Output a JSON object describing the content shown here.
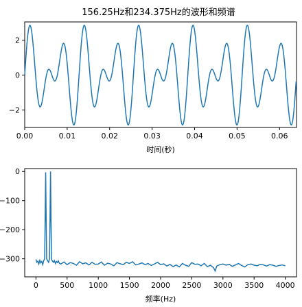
{
  "chart_data": [
    {
      "type": "line",
      "title": "156.25Hz和234.375Hz的波形和频谱",
      "xlabel": "时间(秒)",
      "ylabel": "",
      "xlim": [
        0,
        0.064
      ],
      "ylim": [
        -3,
        3.05
      ],
      "xticks": [
        "0.00",
        "0.01",
        "0.02",
        "0.03",
        "0.04",
        "0.05",
        "0.06"
      ],
      "yticks": [
        "2",
        "0",
        "−2"
      ],
      "signal": {
        "components": [
          {
            "freq_hz": 156.25,
            "amplitude": 1.5
          },
          {
            "freq_hz": 234.375,
            "amplitude": 1.5
          }
        ],
        "t_start": 0,
        "t_end": 0.0639
      },
      "color": "#1f77b4",
      "grid": false
    },
    {
      "type": "line",
      "title": "",
      "xlabel": "频率(Hz)",
      "ylabel": "",
      "xlim": [
        -180,
        4180
      ],
      "ylim": [
        -362,
        10
      ],
      "xticks": [
        "0",
        "500",
        "1000",
        "1500",
        "2000",
        "2500",
        "3000",
        "3500",
        "4000"
      ],
      "yticks": [
        "0",
        "−100",
        "−200",
        "−300"
      ],
      "noise_floor_db": -315,
      "x": [
        0,
        15,
        31,
        46,
        62,
        78,
        93,
        109,
        125,
        140,
        148,
        156.25,
        164,
        172,
        187,
        203,
        218,
        226,
        234.375,
        242,
        250,
        265,
        281,
        296,
        312,
        328,
        343,
        359,
        375,
        400,
        450,
        500,
        550,
        600,
        650,
        700,
        750,
        800,
        850,
        900,
        950,
        1000,
        1050,
        1100,
        1150,
        1200,
        1250,
        1300,
        1350,
        1400,
        1450,
        1500,
        1550,
        1600,
        1650,
        1700,
        1750,
        1800,
        1850,
        1900,
        1950,
        2000,
        2050,
        2100,
        2150,
        2200,
        2250,
        2300,
        2350,
        2400,
        2450,
        2500,
        2550,
        2600,
        2650,
        2700,
        2750,
        2800,
        2850,
        2875,
        2900,
        2950,
        3000,
        3050,
        3100,
        3150,
        3200,
        3250,
        3300,
        3350,
        3400,
        3450,
        3500,
        3550,
        3600,
        3650,
        3700,
        3750,
        3800,
        3850,
        3900,
        3950,
        4000
      ],
      "y": [
        -302,
        -312,
        -308,
        -318,
        -305,
        -314,
        -309,
        -320,
        -306,
        -300,
        -160,
        -3,
        -160,
        -300,
        -306,
        -312,
        -300,
        -160,
        0,
        -160,
        -302,
        -308,
        -312,
        -306,
        -316,
        -309,
        -313,
        -307,
        -315,
        -318,
        -311,
        -320,
        -313,
        -316,
        -322,
        -310,
        -317,
        -314,
        -321,
        -312,
        -319,
        -318,
        -311,
        -322,
        -315,
        -318,
        -324,
        -313,
        -317,
        -320,
        -312,
        -316,
        -310,
        -321,
        -318,
        -314,
        -320,
        -316,
        -323,
        -318,
        -312,
        -320,
        -317,
        -325,
        -319,
        -327,
        -321,
        -328,
        -316,
        -322,
        -326,
        -313,
        -319,
        -318,
        -324,
        -316,
        -327,
        -322,
        -331,
        -342,
        -325,
        -320,
        -318,
        -322,
        -319,
        -326,
        -321,
        -316,
        -323,
        -328,
        -320,
        -318,
        -322,
        -324,
        -319,
        -321,
        -325,
        -320,
        -322,
        -326,
        -323,
        -321,
        -324
      ],
      "color": "#1f77b4",
      "grid": false
    }
  ]
}
